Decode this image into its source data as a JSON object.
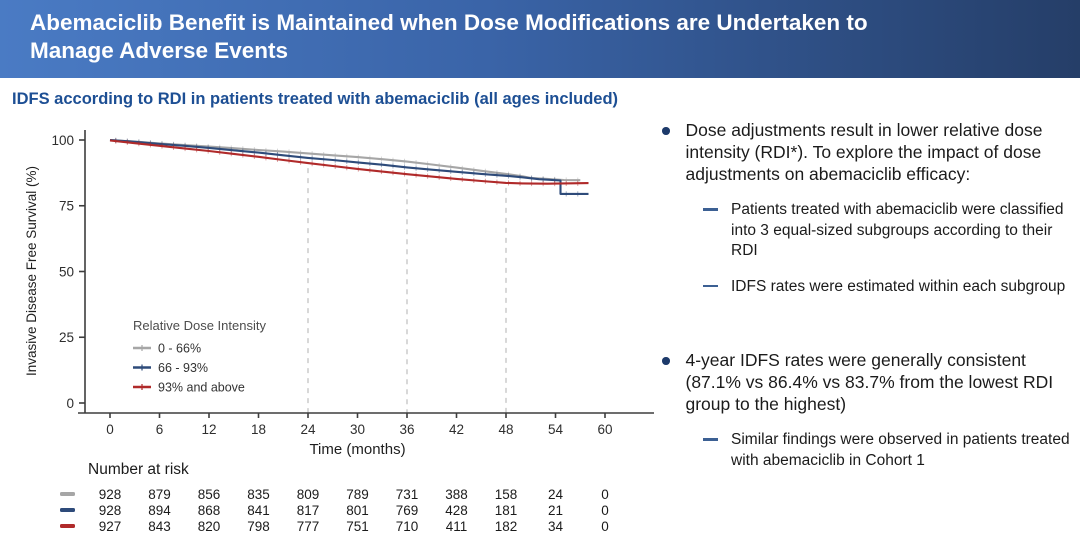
{
  "header": {
    "title": "Abemaciclib Benefit is Maintained when Dose Modifications are Undertaken to Manage Adverse Events",
    "title_line1": "Abemaciclib Benefit is Maintained when Dose Modifications are Undertaken to",
    "title_line2": "Manage Adverse Events"
  },
  "subtitle": "IDFS according to RDI in patients treated with abemaciclib (all ages included)",
  "colors": {
    "header_gradient_left": "#4a7bc4",
    "header_gradient_right": "#253e68",
    "subtitle_blue": "#1d4f94",
    "bullet_dot_navy": "#1d3a6a",
    "sub_dash_blue": "#3c6093",
    "series_gray": "#a6a6a6",
    "series_blue": "#2e4b7a",
    "series_red": "#b02a2a",
    "axis": "#3d3d3d",
    "ref_line": "#c4c4c4",
    "text": "#1b1b1b"
  },
  "chart_data": {
    "type": "line",
    "kind": "kaplan-meier",
    "title": "",
    "xlabel": "Time (months)",
    "ylabel": "Invasive Disease Free Survival (%)",
    "xticks": [
      0,
      6,
      12,
      18,
      24,
      30,
      36,
      42,
      48,
      54,
      60
    ],
    "yticks": [
      100,
      75,
      50,
      25,
      0
    ],
    "xlim": [
      0,
      62
    ],
    "ylim": [
      0,
      100
    ],
    "grid": "off",
    "reference_lines_x": [
      24,
      36,
      48
    ],
    "legend": {
      "title": "Relative Dose Intensity",
      "position": "inside-lower-left",
      "entries": [
        {
          "label": "0 - 66%",
          "color": "#a6a6a6"
        },
        {
          "label": "66 - 93%",
          "color": "#2e4b7a"
        },
        {
          "label": "93% and above",
          "color": "#b02a2a"
        }
      ]
    },
    "series": [
      {
        "name": "0 - 66%",
        "color": "#a6a6a6",
        "points": [
          [
            0,
            100
          ],
          [
            3,
            99.4
          ],
          [
            6,
            98.7
          ],
          [
            9,
            98.1
          ],
          [
            12,
            97.5
          ],
          [
            15,
            96.9
          ],
          [
            18,
            96.2
          ],
          [
            21,
            95.6
          ],
          [
            24,
            94.9
          ],
          [
            27,
            94.2
          ],
          [
            30,
            93.5
          ],
          [
            33,
            92.7
          ],
          [
            36,
            91.8
          ],
          [
            39,
            90.7
          ],
          [
            42,
            89.5
          ],
          [
            45,
            88.3
          ],
          [
            48,
            87.1
          ],
          [
            50,
            86.2
          ],
          [
            51,
            85.6
          ],
          [
            53,
            85.2
          ],
          [
            55,
            84.8
          ],
          [
            57,
            84.7
          ]
        ]
      },
      {
        "name": "66 - 93%",
        "color": "#2e4b7a",
        "points": [
          [
            0,
            100
          ],
          [
            3,
            99.3
          ],
          [
            6,
            98.5
          ],
          [
            9,
            97.8
          ],
          [
            12,
            97.0
          ],
          [
            15,
            96.1
          ],
          [
            18,
            95.2
          ],
          [
            21,
            94.2
          ],
          [
            24,
            93.2
          ],
          [
            27,
            92.4
          ],
          [
            30,
            91.5
          ],
          [
            33,
            90.6
          ],
          [
            36,
            89.6
          ],
          [
            39,
            88.7
          ],
          [
            42,
            87.9
          ],
          [
            45,
            87.1
          ],
          [
            48,
            86.4
          ],
          [
            50,
            85.8
          ],
          [
            52,
            85.1
          ],
          [
            54.6,
            84.6
          ],
          [
            54.6,
            79.5
          ],
          [
            58,
            79.5
          ]
        ]
      },
      {
        "name": "93% and above",
        "color": "#b02a2a",
        "points": [
          [
            0,
            99.8
          ],
          [
            3,
            98.8
          ],
          [
            6,
            97.8
          ],
          [
            9,
            96.8
          ],
          [
            12,
            95.8
          ],
          [
            15,
            94.7
          ],
          [
            18,
            93.6
          ],
          [
            21,
            92.4
          ],
          [
            24,
            91.2
          ],
          [
            27,
            90.1
          ],
          [
            30,
            89.0
          ],
          [
            33,
            88.0
          ],
          [
            36,
            87.0
          ],
          [
            39,
            86.1
          ],
          [
            42,
            85.2
          ],
          [
            45,
            84.4
          ],
          [
            48,
            83.7
          ],
          [
            50,
            83.5
          ],
          [
            53,
            83.4
          ],
          [
            58,
            83.6
          ]
        ]
      }
    ]
  },
  "number_at_risk": {
    "label": "Number at risk",
    "rows": [
      {
        "group": "0 - 66%",
        "color": "#a6a6a6",
        "values": [
          "928",
          "879",
          "856",
          "835",
          "809",
          "789",
          "731",
          "388",
          "158",
          "24",
          "0"
        ]
      },
      {
        "group": "66 - 93%",
        "color": "#2e4b7a",
        "values": [
          "928",
          "894",
          "868",
          "841",
          "817",
          "801",
          "769",
          "428",
          "181",
          "21",
          "0"
        ]
      },
      {
        "group": "93% and above",
        "color": "#b02a2a",
        "values": [
          "927",
          "843",
          "820",
          "798",
          "777",
          "751",
          "710",
          "411",
          "182",
          "34",
          "0"
        ]
      }
    ]
  },
  "panel": {
    "bullets": [
      {
        "text": "Dose adjustments result in lower relative dose intensity (RDI*). To explore the impact of dose adjustments on abemaciclib efficacy:",
        "subs": [
          "Patients treated with abemaciclib were classified into 3 equal-sized subgroups according to their RDI",
          "IDFS rates were estimated within each subgroup"
        ]
      },
      {
        "text": "4-year IDFS rates were generally consistent (87.1% vs 86.4% vs 83.7% from the lowest RDI group to the highest)",
        "subs": [
          "Similar findings were observed in patients treated with abemaciclib in Cohort 1"
        ]
      }
    ]
  }
}
